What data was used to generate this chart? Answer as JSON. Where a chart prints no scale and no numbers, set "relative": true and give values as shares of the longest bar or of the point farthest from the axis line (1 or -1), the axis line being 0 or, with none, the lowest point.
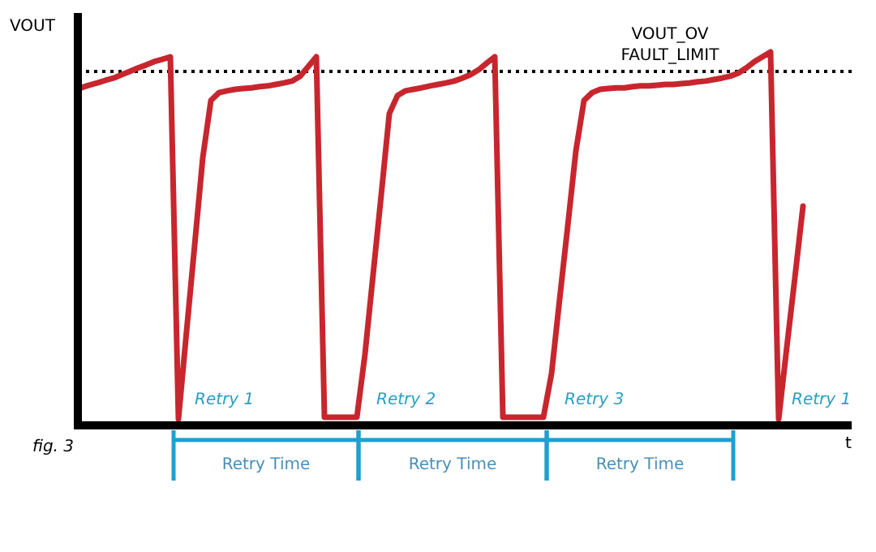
{
  "chart_data": {
    "type": "line",
    "relative": true,
    "xlabel": "t",
    "ylabel": "VOUT",
    "color": "#c8262e",
    "categories": [
      null,
      null,
      null,
      null,
      null,
      null,
      null,
      null,
      null,
      null,
      null,
      null,
      null,
      null,
      null,
      null,
      null,
      null,
      null,
      null,
      null,
      null,
      null,
      null,
      null,
      null,
      null,
      null,
      null,
      null,
      null,
      null,
      null,
      null,
      null,
      null,
      null,
      null,
      null,
      null,
      null,
      null,
      null,
      null,
      null,
      null,
      null,
      null,
      null,
      null,
      null,
      null,
      null,
      null,
      null,
      null,
      null,
      null,
      null,
      null,
      null,
      null,
      null,
      null,
      null,
      null,
      null,
      null,
      null,
      null,
      null,
      null,
      null,
      null,
      null,
      null,
      null,
      null,
      null,
      null,
      null,
      null,
      null,
      null,
      null,
      null,
      null,
      null,
      null,
      null,
      null,
      null,
      null,
      null,
      null,
      null
    ],
    "values": [
      0.904,
      0.911,
      0.917,
      0.924,
      0.93,
      0.939,
      0.948,
      0.957,
      0.965,
      0.974,
      0.98,
      0.987,
      0.017,
      0.252,
      0.483,
      0.717,
      0.87,
      0.891,
      0.896,
      0.9,
      0.902,
      0.904,
      0.907,
      0.909,
      0.913,
      0.917,
      0.922,
      0.935,
      0.961,
      0.987,
      0.022,
      0.022,
      0.022,
      0.022,
      0.022,
      0.191,
      0.404,
      0.617,
      0.835,
      0.883,
      0.896,
      0.9,
      0.904,
      0.909,
      0.913,
      0.917,
      0.922,
      0.93,
      0.939,
      0.952,
      0.97,
      0.987,
      0.022,
      0.022,
      0.022,
      0.022,
      0.022,
      0.022,
      0.139,
      0.339,
      0.535,
      0.735,
      0.87,
      0.891,
      0.9,
      0.902,
      0.904,
      0.904,
      0.907,
      0.909,
      0.909,
      0.911,
      0.913,
      0.913,
      0.915,
      0.917,
      0.92,
      0.922,
      0.926,
      0.93,
      0.935,
      0.943,
      0.957,
      0.974,
      0.987,
      1,
      0.017,
      0.209,
      0.396,
      0.587,
      null,
      null,
      null,
      null,
      null,
      null
    ],
    "ref_lines": [
      {
        "axis": "y",
        "value": 0.948,
        "label": "VOUT_OV FAULT_LIMIT",
        "line_style": "dotted",
        "color": "#000000"
      }
    ],
    "annotations": [
      "Retry 1",
      "Retry 2",
      "Retry 3",
      "Retry 1",
      "Retry Time",
      "Retry Time",
      "Retry Time",
      "fig. 3"
    ]
  }
}
